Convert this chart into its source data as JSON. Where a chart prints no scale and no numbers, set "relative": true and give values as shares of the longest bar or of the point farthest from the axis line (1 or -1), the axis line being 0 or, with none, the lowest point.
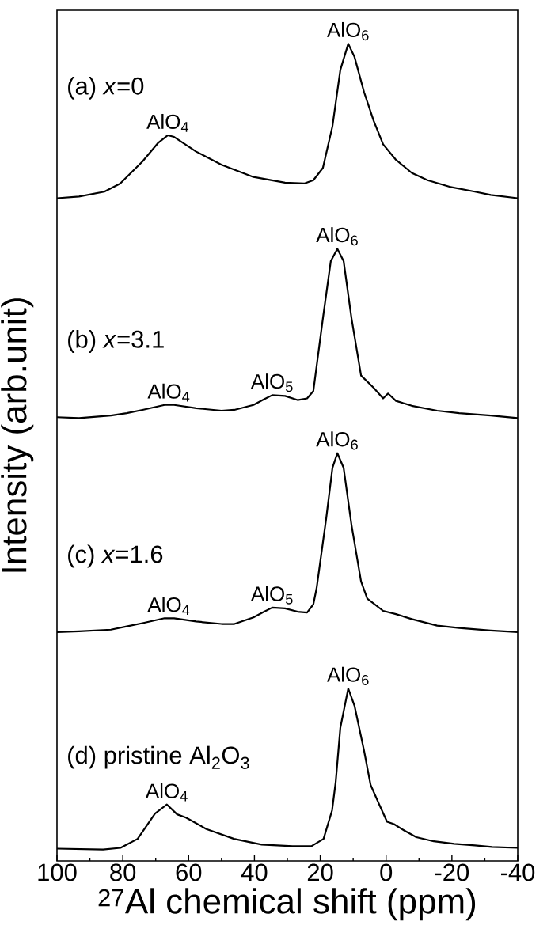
{
  "chart_data": {
    "type": "line",
    "relative": true,
    "marker": "none",
    "line_style": "solid",
    "xlabel": "$^{27}$Al chemical shift (ppm)",
    "ylabel": "Intensity (arb.unit)",
    "xlim": [
      100,
      -40
    ],
    "xticks": [
      100,
      80,
      60,
      40,
      20,
      0,
      -20,
      -40
    ],
    "series": [
      {
        "name": "(a) *x*=0",
        "color": "#000000",
        "x": [
          100,
          93.3,
          85.6,
          80.8,
          74,
          69.2,
          66.3,
          64.4,
          57.7,
          50,
          40.3,
          30.7,
          24.9,
          22.1,
          19.2,
          16.3,
          13.9,
          11.5,
          9.6,
          6.7,
          3.8,
          0.9,
          -3,
          -7.8,
          -12.6,
          -19.3,
          -27,
          -31.8,
          -40
        ],
        "values": [
          0.811,
          0.813,
          0.819,
          0.829,
          0.856,
          0.879,
          0.888,
          0.886,
          0.868,
          0.852,
          0.837,
          0.83,
          0.829,
          0.833,
          0.848,
          0.899,
          0.968,
          1.0,
          0.984,
          0.941,
          0.906,
          0.877,
          0.858,
          0.842,
          0.833,
          0.825,
          0.819,
          0.815,
          0.811
        ]
      },
      {
        "name": "(b) *x*=3.1",
        "color": "#000000",
        "x": [
          100,
          93.3,
          83.6,
          78.8,
          74,
          67.3,
          64.4,
          57.7,
          50,
          46.1,
          40.3,
          37.5,
          34.6,
          30.7,
          26.9,
          24,
          22.1,
          19.2,
          16.8,
          14.8,
          12.9,
          10.5,
          7.6,
          3.8,
          0.9,
          -0.6,
          -3,
          -7.8,
          -15.5,
          -22.2,
          -31.8,
          -40
        ],
        "values": [
          0.543,
          0.542,
          0.545,
          0.548,
          0.552,
          0.558,
          0.558,
          0.554,
          0.551,
          0.552,
          0.558,
          0.564,
          0.57,
          0.569,
          0.564,
          0.566,
          0.575,
          0.664,
          0.734,
          0.749,
          0.734,
          0.664,
          0.594,
          0.579,
          0.566,
          0.572,
          0.563,
          0.557,
          0.551,
          0.548,
          0.545,
          0.542
        ]
      },
      {
        "name": "(c) *x*=1.6",
        "color": "#000000",
        "x": [
          100,
          93.3,
          83.6,
          78.8,
          74,
          67.3,
          64.4,
          57.7,
          50,
          46.1,
          40.3,
          37.5,
          34.6,
          30.7,
          26.9,
          24,
          22.1,
          21.1,
          18.2,
          16.3,
          14.8,
          12.9,
          10.5,
          7.6,
          5.7,
          0.9,
          -3,
          -7.8,
          -15.5,
          -22.2,
          -31.8,
          -40
        ],
        "values": [
          0.28,
          0.281,
          0.283,
          0.287,
          0.291,
          0.297,
          0.297,
          0.293,
          0.29,
          0.29,
          0.298,
          0.304,
          0.31,
          0.309,
          0.305,
          0.304,
          0.314,
          0.334,
          0.419,
          0.481,
          0.499,
          0.481,
          0.411,
          0.342,
          0.321,
          0.306,
          0.302,
          0.296,
          0.288,
          0.285,
          0.282,
          0.28
        ]
      },
      {
        "name": "(d) pristine Al$_{2}$O$_{3}$",
        "color": "#000000",
        "x": [
          100,
          86,
          80.7,
          75.5,
          70.2,
          66.6,
          63.5,
          60.8,
          54.6,
          46.2,
          37.8,
          28.4,
          22.7,
          19,
          16.4,
          15.3,
          13.9,
          11.5,
          9.6,
          6.7,
          4.7,
          2.3,
          -0.3,
          -2.4,
          -5.6,
          -9.2,
          -14.5,
          -20.7,
          -27,
          -32.2,
          -40
        ],
        "values": [
          0.015,
          0.014,
          0.016,
          0.027,
          0.058,
          0.069,
          0.057,
          0.053,
          0.039,
          0.027,
          0.02,
          0.018,
          0.018,
          0.027,
          0.062,
          0.097,
          0.163,
          0.211,
          0.19,
          0.135,
          0.093,
          0.071,
          0.048,
          0.045,
          0.037,
          0.029,
          0.024,
          0.021,
          0.019,
          0.017,
          0.016
        ]
      }
    ],
    "annotations": [
      {
        "text": "AlO$_{4}$",
        "x": 66.3,
        "y": 0.888
      },
      {
        "text": "AlO$_{6}$",
        "x": 11.5,
        "y": 1.0
      },
      {
        "text": "AlO$_{4}$",
        "x": 66,
        "y": 0.558
      },
      {
        "text": "AlO$_{5}$",
        "x": 34.6,
        "y": 0.57
      },
      {
        "text": "AlO$_{6}$",
        "x": 14.8,
        "y": 0.749
      },
      {
        "text": "AlO$_{4}$",
        "x": 66,
        "y": 0.297
      },
      {
        "text": "AlO$_{5}$",
        "x": 34.6,
        "y": 0.31
      },
      {
        "text": "AlO$_{6}$",
        "x": 14.8,
        "y": 0.499
      },
      {
        "text": "AlO$_{4}$",
        "x": 66.6,
        "y": 0.069
      },
      {
        "text": "AlO$_{6}$",
        "x": 11.5,
        "y": 0.211
      }
    ]
  }
}
